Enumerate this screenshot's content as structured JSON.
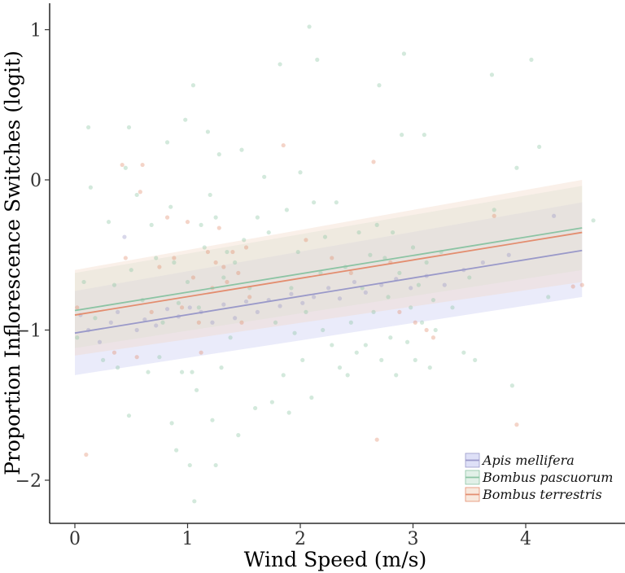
{
  "chart_data": {
    "type": "scatter",
    "title": "",
    "xlabel": "Wind Speed (m/s)",
    "ylabel": "Proportion Inflorescence Switches (logit)",
    "xlim": [
      -0.2,
      4.75
    ],
    "ylim": [
      -2.3,
      1.2
    ],
    "xticks": [
      0,
      1,
      2,
      3,
      4
    ],
    "xtick_labels": [
      "0",
      "1",
      "2",
      "3",
      "4"
    ],
    "yticks": [
      -2,
      -1,
      0,
      1
    ],
    "ytick_labels": [
      "−2",
      "−1",
      "0",
      "1"
    ],
    "grid": false,
    "legend_position": "bottom-right",
    "series": [
      {
        "name": "Apis mellifera",
        "color": "#9a99c9",
        "band_color": "#c8cbf1",
        "fit": {
          "x": [
            0,
            4.5
          ],
          "y": [
            -1.02,
            -0.47
          ]
        },
        "band": {
          "x": [
            0,
            4.5
          ],
          "lower": [
            -1.3,
            -0.78
          ],
          "upper": [
            -0.74,
            -0.15
          ]
        },
        "points": [
          [
            0.05,
            -0.9
          ],
          [
            0.12,
            -1.0
          ],
          [
            0.22,
            -1.08
          ],
          [
            0.32,
            -0.95
          ],
          [
            0.38,
            -0.88
          ],
          [
            0.44,
            -0.38
          ],
          [
            0.55,
            -1.0
          ],
          [
            0.62,
            -0.93
          ],
          [
            0.72,
            -0.97
          ],
          [
            0.82,
            -0.86
          ],
          [
            0.92,
            -0.91
          ],
          [
            1.02,
            -0.85
          ],
          [
            1.12,
            -0.88
          ],
          [
            1.22,
            -0.95
          ],
          [
            1.32,
            -0.83
          ],
          [
            1.42,
            -0.92
          ],
          [
            1.52,
            -0.81
          ],
          [
            1.62,
            -0.88
          ],
          [
            1.72,
            -0.8
          ],
          [
            1.82,
            -0.84
          ],
          [
            1.92,
            -0.76
          ],
          [
            2.02,
            -0.82
          ],
          [
            2.12,
            -0.78
          ],
          [
            2.25,
            -0.72
          ],
          [
            2.35,
            -0.79
          ],
          [
            2.48,
            -0.68
          ],
          [
            2.58,
            -0.75
          ],
          [
            2.72,
            -0.7
          ],
          [
            2.85,
            -0.66
          ],
          [
            2.98,
            -0.72
          ],
          [
            3.12,
            -0.64
          ],
          [
            3.28,
            -0.7
          ],
          [
            3.45,
            -0.6
          ],
          [
            3.62,
            -0.55
          ],
          [
            3.85,
            -0.5
          ],
          [
            4.25,
            -0.24
          ]
        ]
      },
      {
        "name": "Bombus pascuorum",
        "color": "#8cc4a4",
        "band_color": "#cfe6d9",
        "fit": {
          "x": [
            0,
            4.5
          ],
          "y": [
            -0.87,
            -0.32
          ]
        },
        "band": {
          "x": [
            0,
            4.5
          ],
          "lower": [
            -1.12,
            -0.6
          ],
          "upper": [
            -0.62,
            -0.04
          ]
        },
        "points": [
          [
            0.02,
            -1.05
          ],
          [
            0.08,
            -0.68
          ],
          [
            0.12,
            0.35
          ],
          [
            0.14,
            -0.05
          ],
          [
            0.18,
            -0.92
          ],
          [
            0.25,
            -1.2
          ],
          [
            0.3,
            -0.28
          ],
          [
            0.35,
            -0.7
          ],
          [
            0.38,
            -1.25
          ],
          [
            0.45,
            0.08
          ],
          [
            0.48,
            -1.57
          ],
          [
            0.48,
            0.35
          ],
          [
            0.5,
            -0.6
          ],
          [
            0.55,
            -0.1
          ],
          [
            0.6,
            -0.8
          ],
          [
            0.65,
            -1.28
          ],
          [
            0.68,
            -0.3
          ],
          [
            0.72,
            -0.52
          ],
          [
            0.75,
            -1.18
          ],
          [
            0.78,
            -0.95
          ],
          [
            0.82,
            0.25
          ],
          [
            0.85,
            -0.18
          ],
          [
            0.86,
            -1.62
          ],
          [
            0.88,
            -0.55
          ],
          [
            0.9,
            -1.8
          ],
          [
            0.92,
            -0.82
          ],
          [
            0.95,
            -1.28
          ],
          [
            0.98,
            0.4
          ],
          [
            1.0,
            -0.68
          ],
          [
            1.02,
            -1.9
          ],
          [
            1.04,
            -1.28
          ],
          [
            1.05,
            0.63
          ],
          [
            1.06,
            -2.14
          ],
          [
            1.08,
            -1.4
          ],
          [
            1.1,
            -0.85
          ],
          [
            1.12,
            -0.3
          ],
          [
            1.15,
            -0.45
          ],
          [
            1.18,
            0.32
          ],
          [
            1.2,
            -0.1
          ],
          [
            1.22,
            -1.6
          ],
          [
            1.25,
            -1.9
          ],
          [
            1.25,
            -0.25
          ],
          [
            1.28,
            0.17
          ],
          [
            1.3,
            -1.25
          ],
          [
            1.32,
            -0.65
          ],
          [
            1.35,
            -0.48
          ],
          [
            1.38,
            -1.05
          ],
          [
            1.42,
            -0.55
          ],
          [
            1.45,
            -1.7
          ],
          [
            1.48,
            0.2
          ],
          [
            1.5,
            -0.4
          ],
          [
            1.55,
            -0.72
          ],
          [
            1.6,
            -1.52
          ],
          [
            1.62,
            -0.25
          ],
          [
            1.68,
            0.02
          ],
          [
            1.72,
            -0.35
          ],
          [
            1.75,
            -1.48
          ],
          [
            1.78,
            -0.95
          ],
          [
            1.82,
            0.77
          ],
          [
            1.85,
            -1.3
          ],
          [
            1.88,
            -0.2
          ],
          [
            1.9,
            -1.55
          ],
          [
            1.92,
            -0.72
          ],
          [
            1.95,
            -1.02
          ],
          [
            1.98,
            -0.48
          ],
          [
            2.0,
            0.05
          ],
          [
            2.02,
            -1.2
          ],
          [
            2.05,
            -0.88
          ],
          [
            2.08,
            1.02
          ],
          [
            2.1,
            -1.45
          ],
          [
            2.12,
            -0.15
          ],
          [
            2.15,
            0.8
          ],
          [
            2.18,
            -0.62
          ],
          [
            2.2,
            -1.0
          ],
          [
            2.22,
            -0.38
          ],
          [
            2.28,
            -1.1
          ],
          [
            2.32,
            -0.15
          ],
          [
            2.35,
            -1.25
          ],
          [
            2.4,
            -0.58
          ],
          [
            2.42,
            -1.3
          ],
          [
            2.45,
            -0.95
          ],
          [
            2.5,
            -1.15
          ],
          [
            2.52,
            -0.35
          ],
          [
            2.55,
            -0.72
          ],
          [
            2.58,
            -1.1
          ],
          [
            2.62,
            -0.5
          ],
          [
            2.65,
            -0.88
          ],
          [
            2.68,
            -0.3
          ],
          [
            2.7,
            0.63
          ],
          [
            2.72,
            -1.2
          ],
          [
            2.75,
            -0.52
          ],
          [
            2.78,
            -0.78
          ],
          [
            2.8,
            -1.05
          ],
          [
            2.82,
            -0.35
          ],
          [
            2.85,
            -1.3
          ],
          [
            2.88,
            -0.62
          ],
          [
            2.9,
            0.3
          ],
          [
            2.92,
            0.84
          ],
          [
            2.95,
            -1.08
          ],
          [
            2.98,
            -0.85
          ],
          [
            3.0,
            -0.45
          ],
          [
            3.02,
            -1.2
          ],
          [
            3.05,
            -0.7
          ],
          [
            3.08,
            -0.95
          ],
          [
            3.1,
            0.3
          ],
          [
            3.12,
            -0.55
          ],
          [
            3.15,
            -1.25
          ],
          [
            3.18,
            -0.8
          ],
          [
            3.2,
            -1.0
          ],
          [
            3.25,
            -0.48
          ],
          [
            3.35,
            -0.85
          ],
          [
            3.45,
            -1.15
          ],
          [
            3.5,
            -0.65
          ],
          [
            3.55,
            -1.2
          ],
          [
            3.7,
            0.7
          ],
          [
            3.72,
            -0.2
          ],
          [
            3.88,
            -1.37
          ],
          [
            3.92,
            0.08
          ],
          [
            4.05,
            0.8
          ],
          [
            4.12,
            0.22
          ],
          [
            4.2,
            -0.78
          ],
          [
            4.6,
            -0.27
          ]
        ]
      },
      {
        "name": "Bombus terrestris",
        "color": "#e38d6f",
        "band_color": "#f3d8c6",
        "fit": {
          "x": [
            0,
            4.5
          ],
          "y": [
            -0.9,
            -0.35
          ]
        },
        "band": {
          "x": [
            0,
            4.5
          ],
          "lower": [
            -1.17,
            -0.68
          ],
          "upper": [
            -0.6,
            0.0
          ]
        },
        "points": [
          [
            0.02,
            -0.85
          ],
          [
            0.1,
            -1.83
          ],
          [
            0.35,
            -1.15
          ],
          [
            0.42,
            0.1
          ],
          [
            0.45,
            -0.52
          ],
          [
            0.55,
            -1.18
          ],
          [
            0.58,
            -0.08
          ],
          [
            0.6,
            0.1
          ],
          [
            0.68,
            -0.88
          ],
          [
            0.75,
            -0.58
          ],
          [
            0.82,
            -0.25
          ],
          [
            0.88,
            -0.52
          ],
          [
            0.95,
            -0.85
          ],
          [
            1.0,
            -0.28
          ],
          [
            1.05,
            -0.65
          ],
          [
            1.1,
            -0.95
          ],
          [
            1.12,
            -1.15
          ],
          [
            1.18,
            -0.48
          ],
          [
            1.22,
            -0.72
          ],
          [
            1.25,
            -0.55
          ],
          [
            1.28,
            -0.32
          ],
          [
            1.32,
            -0.58
          ],
          [
            1.35,
            -0.68
          ],
          [
            1.4,
            -0.48
          ],
          [
            1.45,
            -0.62
          ],
          [
            1.48,
            -0.95
          ],
          [
            1.52,
            -0.45
          ],
          [
            1.55,
            -0.78
          ],
          [
            1.85,
            0.23
          ],
          [
            2.05,
            -0.4
          ],
          [
            2.28,
            -0.52
          ],
          [
            2.45,
            -0.62
          ],
          [
            2.65,
            0.12
          ],
          [
            2.68,
            -1.73
          ],
          [
            2.8,
            -0.55
          ],
          [
            2.88,
            -0.88
          ],
          [
            3.02,
            -0.95
          ],
          [
            3.12,
            -1.0
          ],
          [
            3.18,
            -1.05
          ],
          [
            3.72,
            -0.24
          ],
          [
            3.92,
            -1.63
          ],
          [
            4.42,
            -0.71
          ],
          [
            4.5,
            -0.7
          ]
        ]
      }
    ]
  }
}
